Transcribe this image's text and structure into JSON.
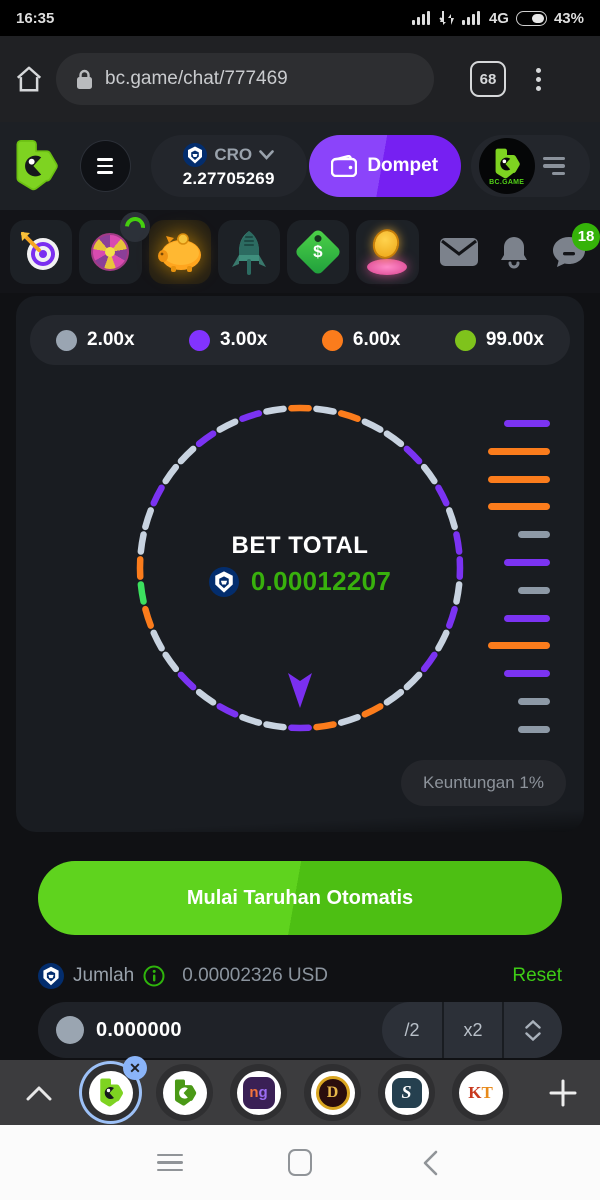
{
  "status_bar": {
    "time": "16:35",
    "network": "4G",
    "battery_percent": "43%"
  },
  "browser": {
    "url": "bc.game/chat/777469",
    "tab_count": "68"
  },
  "header": {
    "currency": {
      "code": "CRO",
      "balance": "2.27705269"
    },
    "wallet_button_label": "Dompet",
    "brand": "BC.GAME",
    "chat_badge": "18"
  },
  "game": {
    "legend": [
      {
        "label": "2.00x",
        "color": "#9aa5b2"
      },
      {
        "label": "3.00x",
        "color": "#8233ff"
      },
      {
        "label": "6.00x",
        "color": "#fb7c1c"
      },
      {
        "label": "99.00x",
        "color": "#7fc31c"
      }
    ],
    "bet_total_label": "BET TOTAL",
    "bet_total": "0.00012207",
    "profit_label": "Keuntungan 1%",
    "wheel": {
      "palette": {
        "G": "#c8d3e0",
        "P": "#7b33f2",
        "O": "#fb7c1c",
        "N": "#3ce05f"
      },
      "dash_colors": [
        "O",
        "G",
        "O",
        "G",
        "G",
        "P",
        "G",
        "P",
        "G",
        "P",
        "P",
        "G",
        "P",
        "G",
        "P",
        "G",
        "G",
        "O",
        "G",
        "O",
        "P",
        "G",
        "G",
        "P",
        "G",
        "P",
        "G",
        "G",
        "O",
        "N",
        "O",
        "G",
        "G",
        "P",
        "G",
        "G",
        "P",
        "G",
        "P",
        "G"
      ]
    },
    "history_bars": [
      {
        "color": "P",
        "size": "m"
      },
      {
        "color": "O",
        "size": "l"
      },
      {
        "color": "O",
        "size": "l"
      },
      {
        "color": "O",
        "size": "l"
      },
      {
        "color": "G",
        "size": "s"
      },
      {
        "color": "P",
        "size": "m"
      },
      {
        "color": "G",
        "size": "s"
      },
      {
        "color": "P",
        "size": "m"
      },
      {
        "color": "O",
        "size": "l"
      },
      {
        "color": "P",
        "size": "m"
      },
      {
        "color": "G",
        "size": "s"
      },
      {
        "color": "G",
        "size": "s"
      }
    ],
    "history_palette": {
      "G": "#8d99a6",
      "P": "#7b33f2",
      "O": "#fb7c1c"
    }
  },
  "controls": {
    "start_button": "Mulai Taruhan Otomatis",
    "amount_label": "Jumlah",
    "amount_usd": "0.00002326 USD",
    "reset_label": "Reset",
    "bet_input_value": "0.000000",
    "half_button": "/2",
    "double_button": "x2"
  },
  "tab_bar": {
    "tabs": [
      {
        "logo": "b",
        "active": true
      },
      {
        "logo": "b",
        "active": false
      },
      {
        "logo": "ng",
        "active": false
      },
      {
        "logo": "D",
        "active": false
      },
      {
        "logo": "S",
        "active": false
      },
      {
        "logo": "KT",
        "active": false
      }
    ]
  }
}
